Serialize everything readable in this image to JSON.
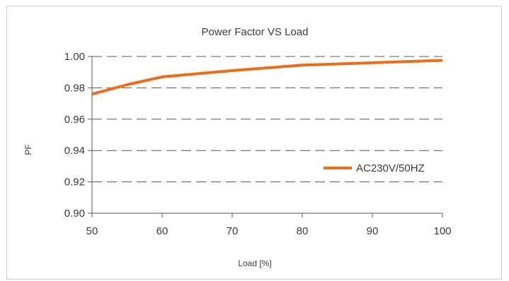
{
  "chart_data": {
    "type": "line",
    "title": "Power Factor VS Load",
    "xlabel": "Load [%]",
    "ylabel": "PF",
    "xlim": [
      50,
      100
    ],
    "ylim": [
      0.9,
      1.0
    ],
    "x_ticks": [
      "50",
      "60",
      "70",
      "80",
      "90",
      "100"
    ],
    "y_ticks": [
      "0.90",
      "0.92",
      "0.94",
      "0.96",
      "0.98",
      "1.00"
    ],
    "grid": true,
    "legend_position": "right",
    "series": [
      {
        "name": "AC230V/50HZ",
        "color": "#ec6c1c",
        "x": [
          50,
          55,
          60,
          70,
          80,
          90,
          100
        ],
        "y": [
          0.976,
          0.982,
          0.987,
          0.991,
          0.9945,
          0.996,
          0.9975
        ]
      }
    ]
  }
}
